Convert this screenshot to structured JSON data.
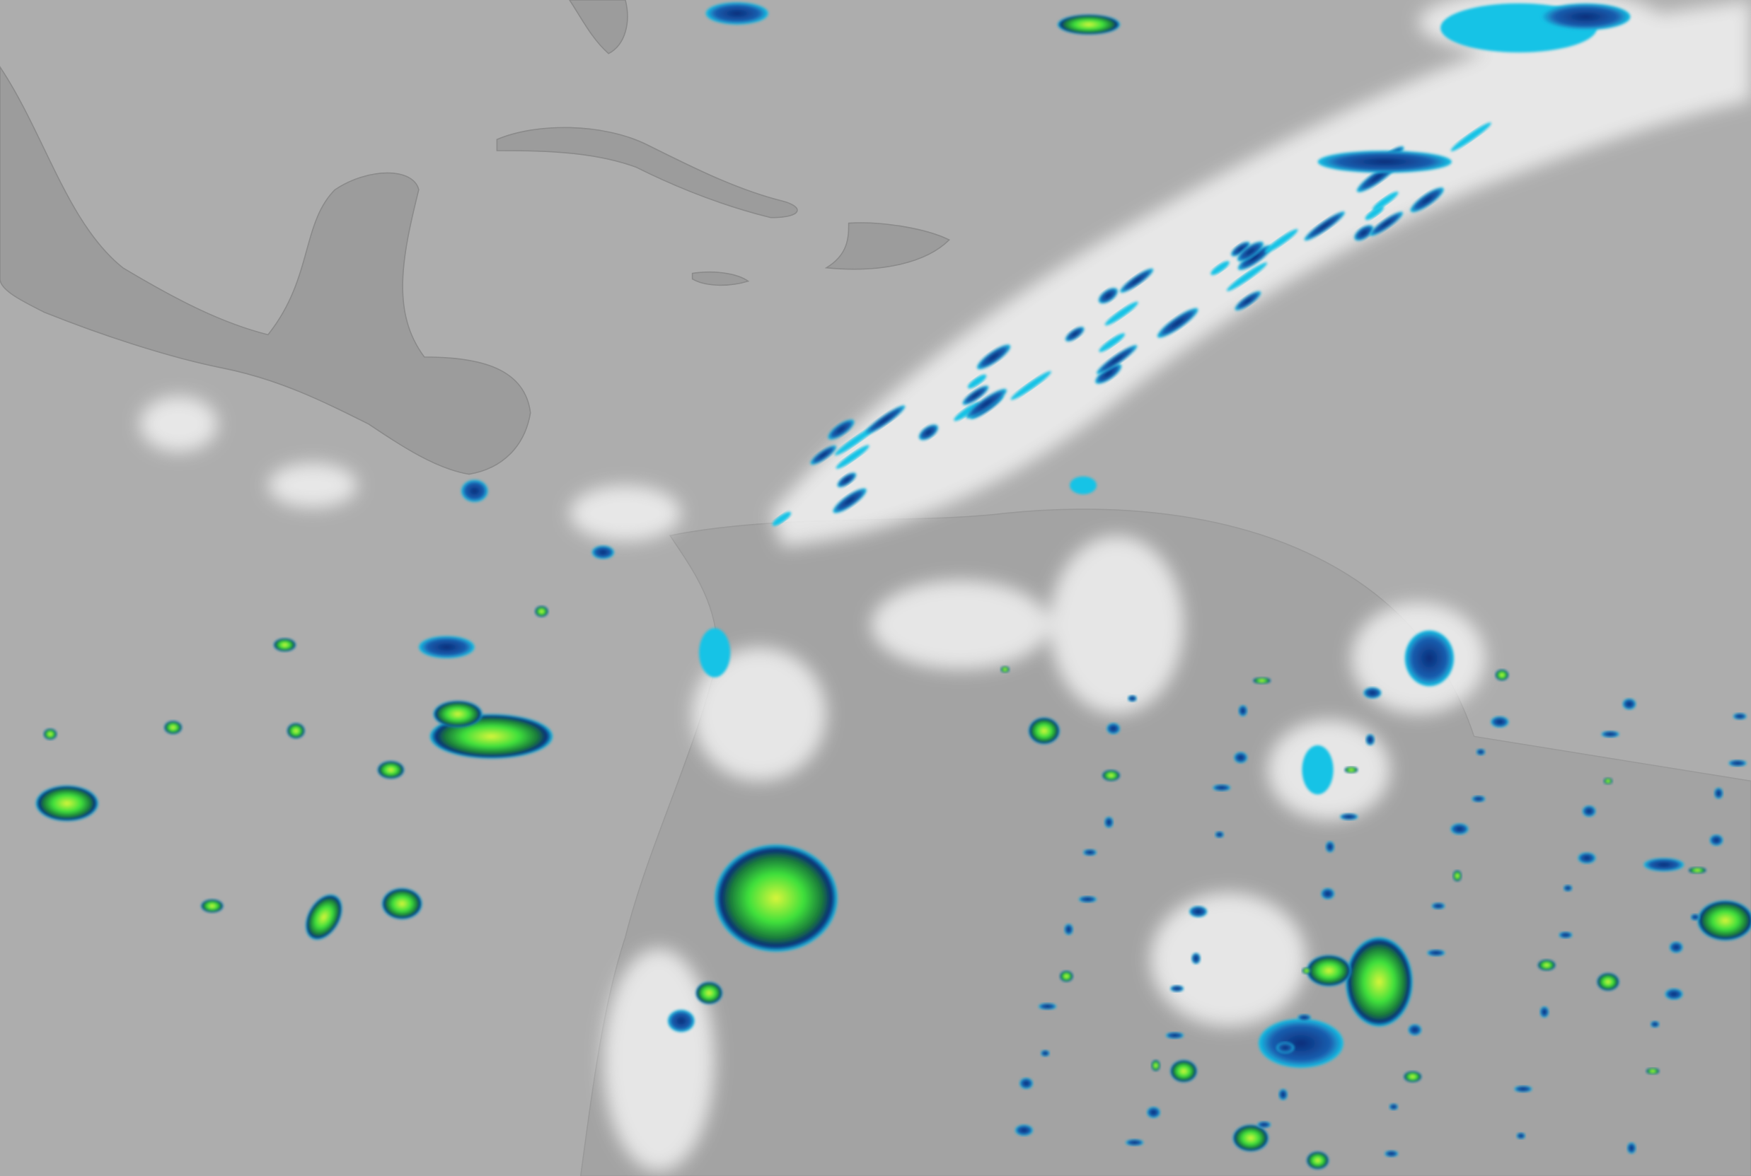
{
  "imagery": {
    "kind": "enhanced infrared satellite image",
    "palette": {
      "background_ocean": "#a9a9a9",
      "land": "#9a9a9a",
      "cold_cloud_white": "#f4f4f4",
      "cyan": "#19c3e6",
      "deep_blue": "#0a2d7a",
      "green": "#3ee03a",
      "yellow_green": "#d8f53a"
    }
  }
}
